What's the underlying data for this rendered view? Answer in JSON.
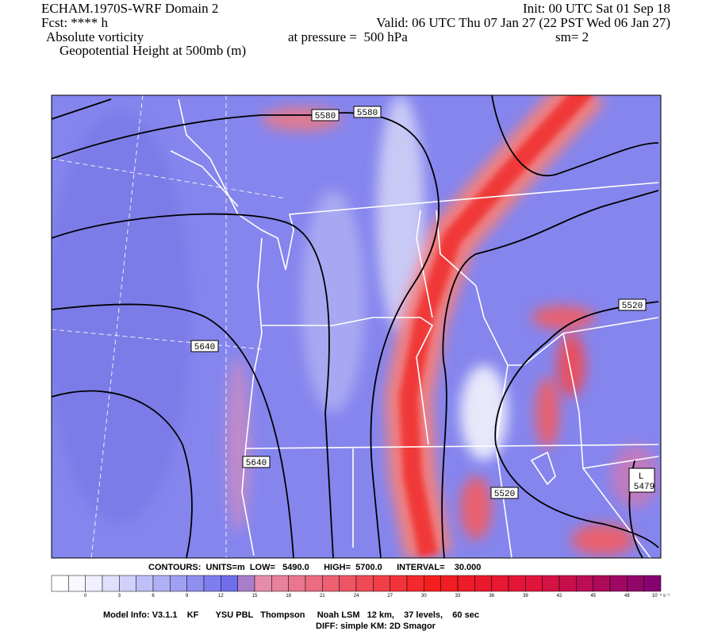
{
  "header": {
    "title": "ECHAM.1970S-WRF Domain 2",
    "init": "Init: 00 UTC Sat 01 Sep 18",
    "forecast": "Fcst: **** h",
    "valid": "Valid: 06 UTC Thu 07 Jan 27 (22 PST Wed 06 Jan 27)",
    "field": "Absolute vorticity",
    "pressure": "at pressure =  500 hPa",
    "smoothing": "sm= 2",
    "overlay": "Geopotential Height at 500mb (m)"
  },
  "contour_labels": [
    "5580",
    "5580",
    "5640",
    "5640",
    "5520",
    "5520",
    "L",
    "5479"
  ],
  "contour_info": "CONTOURS:  UNITS=m  LOW=   5490.0      HIGH=  5700.0      INTERVAL=    30.000",
  "colorbar": {
    "labels": [
      "0",
      "3",
      "6",
      "9",
      "12",
      "15",
      "18",
      "21",
      "24",
      "27",
      "30",
      "33",
      "36",
      "39",
      "42",
      "45",
      "48"
    ],
    "units": "10⁻⁵ s⁻¹"
  },
  "footer": {
    "model_info": "Model Info: V3.1.1    KF       YSU PBL   Thompson     Noah LSM   12 km,    37 levels,    60 sec",
    "diff": "DIFF: simple KM: 2D Smagor"
  }
}
